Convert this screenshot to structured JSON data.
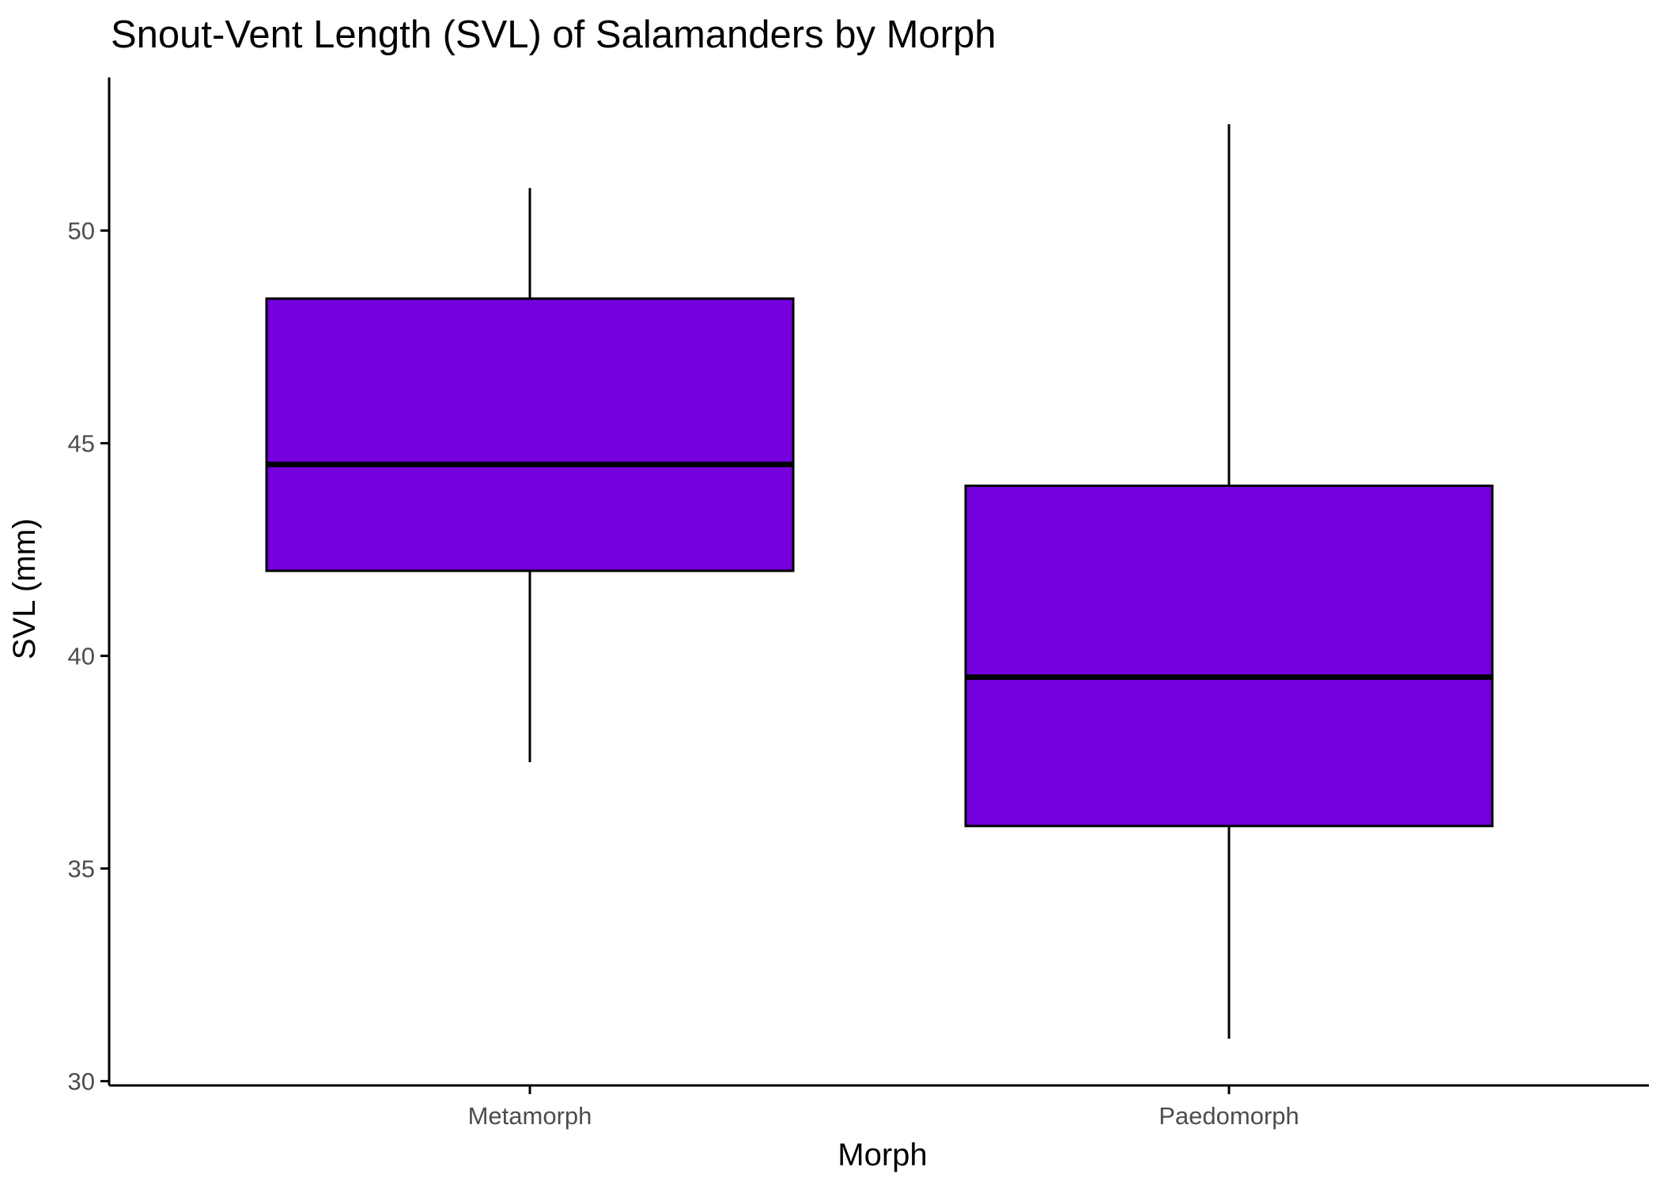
{
  "chart_data": {
    "type": "boxplot",
    "title": "Snout-Vent Length (SVL) of Salamanders by Morph",
    "xlabel": "Morph",
    "ylabel": "SVL (mm)",
    "categories": [
      "Metamorph",
      "Paedomorph"
    ],
    "boxes": [
      {
        "category": "Metamorph",
        "min": 37.5,
        "q1": 42.0,
        "median": 44.5,
        "q3": 48.4,
        "max": 51.0
      },
      {
        "category": "Paedomorph",
        "min": 31.0,
        "q1": 36.0,
        "median": 39.5,
        "q3": 44.0,
        "max": 52.5
      }
    ],
    "y_ticks": [
      30,
      35,
      40,
      45,
      50
    ],
    "y_tick_labels": [
      "30",
      "35",
      "40",
      "45",
      "50"
    ],
    "ylim": [
      29.9,
      53.6
    ],
    "grid": false,
    "legend": "none",
    "colors": {
      "box_fill": "#7400DE",
      "box_stroke": "#000000",
      "axis": "#000000",
      "tick_label": "#4d4d4d"
    }
  }
}
